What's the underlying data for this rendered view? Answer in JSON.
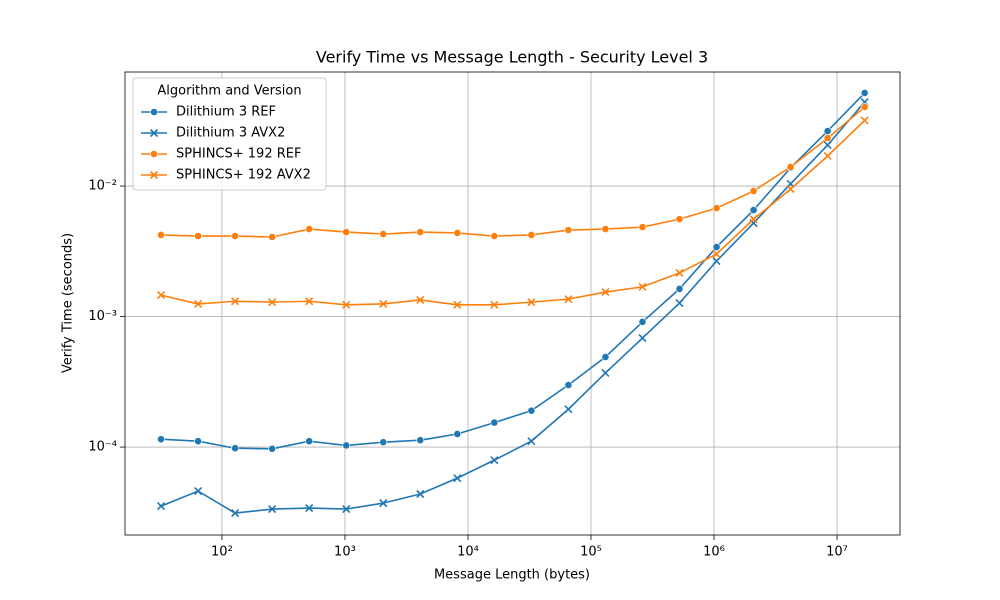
{
  "chart_data": {
    "type": "line",
    "title": "Verify Time vs Message Length - Security Level 3",
    "x_label": "Message Length (bytes)",
    "y_label": "Verify Time (seconds)",
    "x_scale": "log",
    "y_scale": "log",
    "grid": true,
    "legend_title": "Algorithm and Version",
    "legend_position": "upper left",
    "x": [
      32,
      64,
      128,
      256,
      512,
      1024,
      2048,
      4096,
      8192,
      16384,
      32768,
      65536,
      131072,
      262144,
      524288,
      1048576,
      2097152,
      4194304,
      8388608,
      16777216
    ],
    "xlim": [
      16.3,
      32500000
    ],
    "xticks": [
      {
        "value": 100,
        "label": "10²"
      },
      {
        "value": 1000,
        "label": "10³"
      },
      {
        "value": 10000,
        "label": "10⁴"
      },
      {
        "value": 100000,
        "label": "10⁵"
      },
      {
        "value": 1000000,
        "label": "10⁶"
      },
      {
        "value": 10000000,
        "label": "10⁷"
      }
    ],
    "ylim": [
      2.12e-05,
      0.0748
    ],
    "yticks": [
      {
        "value": 0.0001,
        "label": "10⁻⁴"
      },
      {
        "value": 0.001,
        "label": "10⁻³"
      },
      {
        "value": 0.01,
        "label": "10⁻²"
      }
    ],
    "series": [
      {
        "name": "Dilithium 3 REF",
        "color": "#1f77b4",
        "marker": "o",
        "values": [
          0.000115,
          0.000111,
          9.8e-05,
          9.7e-05,
          0.000111,
          0.000103,
          0.000109,
          0.000113,
          0.000126,
          0.000154,
          0.00019,
          0.000299,
          0.00049,
          0.00091,
          0.00163,
          0.00341,
          0.00655,
          0.0138,
          0.0264,
          0.0517
        ]
      },
      {
        "name": "Dilithium 3 AVX2",
        "color": "#1f77b4",
        "marker": "x",
        "values": [
          3.53e-05,
          4.6e-05,
          3.12e-05,
          3.35e-05,
          3.41e-05,
          3.35e-05,
          3.72e-05,
          4.37e-05,
          5.78e-05,
          7.94e-05,
          0.000111,
          0.000195,
          0.00037,
          0.000684,
          0.00127,
          0.00266,
          0.0052,
          0.0104,
          0.0206,
          0.044
        ]
      },
      {
        "name": "SPHINCS+ 192 REF",
        "color": "#ff7f0e",
        "marker": "o",
        "values": [
          0.00422,
          0.00414,
          0.00414,
          0.00407,
          0.00468,
          0.00444,
          0.00429,
          0.00444,
          0.00437,
          0.00414,
          0.00422,
          0.0046,
          0.00468,
          0.00485,
          0.00558,
          0.00678,
          0.00916,
          0.014,
          0.0233,
          0.0403
        ]
      },
      {
        "name": "SPHINCS+ 192 AVX2",
        "color": "#ff7f0e",
        "marker": "x",
        "values": [
          0.00146,
          0.00125,
          0.00131,
          0.00129,
          0.00131,
          0.00123,
          0.00125,
          0.00134,
          0.00123,
          0.00123,
          0.00129,
          0.00136,
          0.00154,
          0.00169,
          0.00216,
          0.00301,
          0.00558,
          0.00948,
          0.017,
          0.0318
        ]
      }
    ]
  }
}
